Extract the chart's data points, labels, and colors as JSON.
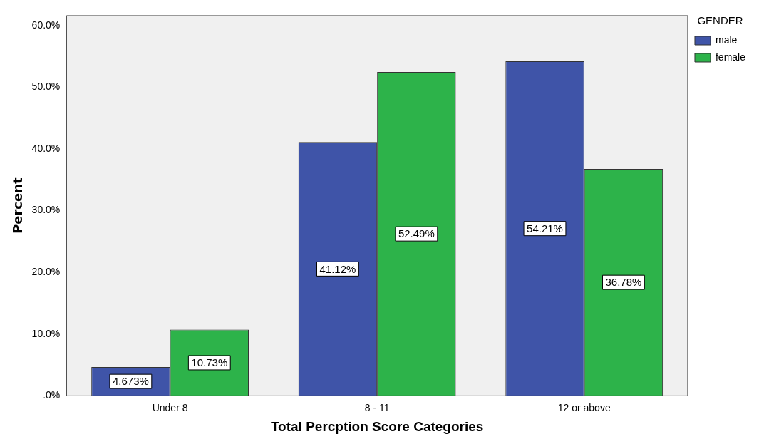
{
  "chart_data": {
    "type": "bar",
    "xlabel": "Total Percption Score Categories",
    "ylabel": "Percent",
    "legend_title": "GENDER",
    "legend": "top right",
    "categories": [
      "Under 8",
      "8 - 11",
      "12 or above"
    ],
    "series": [
      {
        "name": "male",
        "color": "#3f54a8",
        "values": [
          4.673,
          41.12,
          54.21
        ],
        "value_labels": [
          "4.673%",
          "41.12%",
          "54.21%"
        ]
      },
      {
        "name": "female",
        "color": "#2db34a",
        "values": [
          10.73,
          52.49,
          36.78
        ],
        "value_labels": [
          "10.73%",
          "52.49%",
          "36.78%"
        ]
      }
    ],
    "ylim": [
      0,
      61.6
    ],
    "yticks": [
      {
        "value": 0,
        "label": ".0%"
      },
      {
        "value": 10,
        "label": "10.0%"
      },
      {
        "value": 20,
        "label": "20.0%"
      },
      {
        "value": 30,
        "label": "30.0%"
      },
      {
        "value": 40,
        "label": "40.0%"
      },
      {
        "value": 50,
        "label": "50.0%"
      },
      {
        "value": 60,
        "label": "60.0%"
      }
    ]
  }
}
